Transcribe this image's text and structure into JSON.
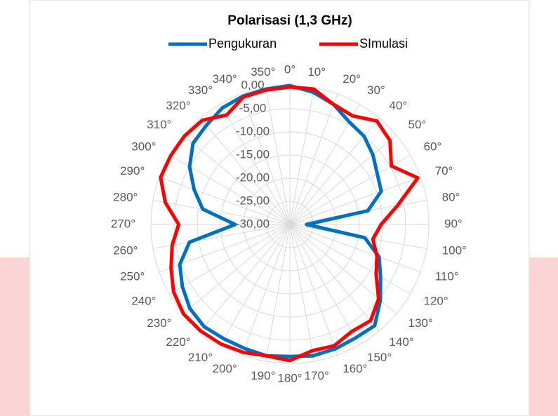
{
  "chart_data": {
    "type": "radar",
    "title": "Polarisasi (1,3 GHz)",
    "categories": [
      "0°",
      "10°",
      "20°",
      "30°",
      "40°",
      "50°",
      "60°",
      "70°",
      "80°",
      "90°",
      "100°",
      "110°",
      "120°",
      "130°",
      "140°",
      "150°",
      "160°",
      "170°",
      "180°",
      "190°",
      "200°",
      "210°",
      "220°",
      "230°",
      "240°",
      "250°",
      "260°",
      "270°",
      "280°",
      "290°",
      "300°",
      "310°",
      "320°",
      "330°",
      "340°",
      "350°"
    ],
    "series": [
      {
        "name": "Pengukuran",
        "color": "#0070c0",
        "values": [
          0,
          -1,
          -2.4,
          -4.4,
          -5.1,
          -6.6,
          -8.2,
          -9,
          -12.9,
          -26.4,
          -13.6,
          -9.5,
          -7.4,
          -4.5,
          -1.5,
          -1.7,
          -1.4,
          -1.2,
          -1.5,
          -1.2,
          -1.5,
          -1.5,
          -1.2,
          -1.8,
          -3.2,
          -4.7,
          -8,
          -18.2,
          -10.9,
          -8,
          -5,
          -2.7,
          -2,
          -0.9,
          -0.5,
          -0.3
        ]
      },
      {
        "name": "SImulasi",
        "color": "#ff0000",
        "values": [
          -0.3,
          -0.3,
          -2.4,
          -2.9,
          -0.8,
          -1.8,
          -4.7,
          -0.6,
          -6.4,
          -10.3,
          -11.8,
          -10,
          -8.5,
          -5,
          -2.9,
          -3.3,
          -2.1,
          -2.3,
          -0.6,
          -1.2,
          -0.6,
          -0.2,
          0,
          0,
          -1,
          -2.7,
          -4.2,
          -6,
          -2.7,
          -0.3,
          -0.3,
          -0.3,
          -0.6,
          -2.7,
          -0.7,
          -0.5
        ]
      }
    ],
    "ylim": [
      -30,
      0
    ],
    "yticks": [
      {
        "value": 0,
        "label": "0,00"
      },
      {
        "value": -5,
        "label": "-5,00"
      },
      {
        "value": -10,
        "label": "-10,00"
      },
      {
        "value": -15,
        "label": "-15,00"
      },
      {
        "value": -20,
        "label": "-20,00"
      },
      {
        "value": -25,
        "label": "-25,00"
      },
      {
        "value": -30,
        "label": "-30,00"
      }
    ],
    "grid": true,
    "legend": "top"
  }
}
